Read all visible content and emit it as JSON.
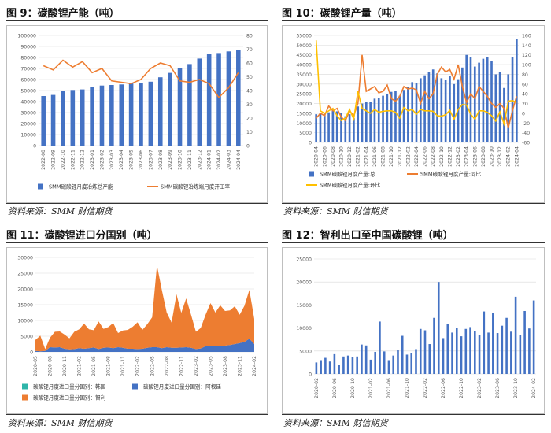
{
  "figures": [
    {
      "title": "图 9：碳酸锂产能（吨）",
      "source": "资料来源：SMM 财信期货"
    },
    {
      "title": "图 10：碳酸锂产量（吨）",
      "source": "资料来源：SMM 财信期货"
    },
    {
      "title": "图 11：碳酸锂进口分国别（吨）",
      "source": "资料来源：SMM 财信期货"
    },
    {
      "title": "图 12：智利出口至中国碳酸锂（吨）",
      "source": "资料来源：SMM 财信期货"
    }
  ],
  "colors": {
    "blue": "#4472C4",
    "orange": "#ED7D31",
    "yellow": "#FFC000",
    "teal": "#2EB5A9",
    "grid": "#d9d9d9",
    "axis": "#595959"
  },
  "chart_data": [
    {
      "type": "bar+line",
      "categories": [
        "2022-08",
        "2022-09",
        "2022-10",
        "2022-11",
        "2022-12",
        "2023-01",
        "2023-02",
        "2023-03",
        "2023-04",
        "2023-05",
        "2023-06",
        "2023-07",
        "2023-08",
        "2023-09",
        "2023-10",
        "2023-11",
        "2023-12",
        "2024-01",
        "2024-02",
        "2024-03",
        "2024-04"
      ],
      "yticks": [
        "0",
        "10000",
        "20000",
        "30000",
        "40000",
        "50000",
        "60000",
        "70000",
        "80000",
        "90000",
        "100000"
      ],
      "y2ticks": [
        "0",
        "10",
        "20",
        "30",
        "40",
        "50",
        "60",
        "70",
        "80"
      ],
      "ylim": [
        0,
        100000
      ],
      "y2lim": [
        0,
        80
      ],
      "series": [
        {
          "name": "SMM碳酸锂月度冶炼总产能",
          "kind": "bar",
          "axis": "left",
          "color": "#4472C4",
          "values": [
            45000,
            46000,
            50000,
            50500,
            51000,
            53500,
            54500,
            55000,
            55500,
            56500,
            57000,
            58000,
            62000,
            66000,
            70000,
            74000,
            79000,
            83000,
            84000,
            85500,
            87000
          ]
        },
        {
          "name": "SMM碳酸锂冶炼端月度开工率",
          "kind": "line",
          "axis": "right",
          "color": "#ED7D31",
          "values": [
            58,
            55,
            62,
            57,
            61,
            53,
            56,
            47,
            46,
            45,
            48,
            56,
            60,
            58,
            47,
            46,
            48,
            45,
            35,
            42,
            53
          ]
        }
      ]
    },
    {
      "type": "bar+line",
      "categories": [
        "2020-04",
        "2020-05",
        "2020-06",
        "2020-07",
        "2020-08",
        "2020-09",
        "2020-10",
        "2020-11",
        "2020-12",
        "2021-01",
        "2021-02",
        "2021-03",
        "2021-04",
        "2021-05",
        "2021-06",
        "2021-07",
        "2021-08",
        "2021-09",
        "2021-10",
        "2021-11",
        "2021-12",
        "2022-01",
        "2022-02",
        "2022-03",
        "2022-04",
        "2022-05",
        "2022-06",
        "2022-07",
        "2022-08",
        "2022-09",
        "2022-10",
        "2022-11",
        "2022-12",
        "2023-01",
        "2023-02",
        "2023-03",
        "2023-04",
        "2023-05",
        "2023-06",
        "2023-07",
        "2023-08",
        "2023-09",
        "2023-10",
        "2023-11",
        "2023-12",
        "2024-01",
        "2024-02",
        "2024-03",
        "2024-04"
      ],
      "xlabels": [
        "2020-04",
        "2020-06",
        "2020-08",
        "2020-10",
        "2020-12",
        "2021-02",
        "2021-04",
        "2021-06",
        "2021-08",
        "2021-10",
        "2021-12",
        "2022-02",
        "2022-04",
        "2022-06",
        "2022-08",
        "2022-10",
        "2022-12",
        "2023-02",
        "2023-04",
        "2023-06",
        "2023-08",
        "2023-10",
        "2023-12",
        "2024-02",
        "2024-04"
      ],
      "yticks": [
        "0",
        "5000",
        "10000",
        "15000",
        "20000",
        "25000",
        "30000",
        "35000",
        "40000",
        "45000",
        "50000",
        "55000"
      ],
      "y2ticks": [
        "-60",
        "-40",
        "-20",
        "0",
        "20",
        "40",
        "60",
        "80",
        "100",
        "120",
        "140",
        "160"
      ],
      "ylim": [
        0,
        55000
      ],
      "y2lim": [
        -60,
        160
      ],
      "series": [
        {
          "name": "SMM碳酸锂月度产量:总",
          "kind": "bar",
          "axis": "left",
          "color": "#4472C4",
          "values": [
            14500,
            15000,
            14800,
            15500,
            16500,
            16000,
            15000,
            13500,
            14500,
            12500,
            18500,
            20000,
            21000,
            21000,
            22500,
            23000,
            24000,
            25000,
            26000,
            26500,
            24000,
            27000,
            28500,
            31000,
            30500,
            33000,
            34500,
            36000,
            37500,
            35500,
            33000,
            32000,
            34000,
            30000,
            32500,
            38500,
            45000,
            44000,
            39000,
            41000,
            43000,
            44000,
            42000,
            35000,
            36000,
            28000,
            35000,
            44000,
            53000
          ]
        },
        {
          "name": "SMM碳酸锂月度产量:同比",
          "kind": "line",
          "axis": "right",
          "color": "#ED7D31",
          "values": [
            -10,
            0,
            -5,
            15,
            5,
            10,
            -8,
            -15,
            5,
            -5,
            20,
            120,
            45,
            50,
            55,
            42,
            45,
            58,
            30,
            25,
            35,
            55,
            50,
            52,
            48,
            20,
            45,
            30,
            40,
            80,
            95,
            85,
            90,
            70,
            100,
            55,
            22,
            40,
            30,
            55,
            45,
            35,
            20,
            12,
            20,
            10,
            -30,
            5,
            35
          ]
        },
        {
          "name": "SMM碳酸锂月度产量:环比",
          "kind": "line",
          "axis": "right",
          "color": "#FFC000",
          "values": [
            150,
            5,
            0,
            5,
            10,
            -5,
            -15,
            -10,
            8,
            -12,
            45,
            10,
            5,
            0,
            8,
            2,
            4,
            5,
            5,
            2,
            -10,
            12,
            5,
            8,
            -2,
            8,
            5,
            5,
            4,
            -5,
            -6,
            -3,
            6,
            -12,
            8,
            18,
            17,
            -2,
            -12,
            5,
            5,
            2,
            -5,
            -16,
            3,
            -22,
            25,
            26,
            22
          ]
        }
      ]
    },
    {
      "type": "area",
      "stacked": true,
      "categories": [
        "2020-05",
        "2020-06",
        "2020-07",
        "2020-08",
        "2020-09",
        "2020-10",
        "2020-11",
        "2020-12",
        "2021-01",
        "2021-02",
        "2021-03",
        "2021-04",
        "2021-05",
        "2021-06",
        "2021-07",
        "2021-08",
        "2021-09",
        "2021-10",
        "2021-11",
        "2021-12",
        "2022-01",
        "2022-02",
        "2022-03",
        "2022-04",
        "2022-05",
        "2022-06",
        "2022-07",
        "2022-08",
        "2022-09",
        "2022-10",
        "2022-11",
        "2022-12",
        "2023-01",
        "2023-02",
        "2023-03",
        "2023-04",
        "2023-05",
        "2023-06",
        "2023-07",
        "2023-08",
        "2023-09",
        "2023-10",
        "2023-11",
        "2023-12",
        "2024-01",
        "2024-02"
      ],
      "xlabels": [
        "2020-05",
        "2020-08",
        "2020-11",
        "2021-02",
        "2021-05",
        "2021-08",
        "2021-11",
        "2022-02",
        "2022-05",
        "2022-08",
        "2022-11",
        "2023-02",
        "2023-05",
        "2023-08",
        "2023-11",
        "2024-02"
      ],
      "yticks": [
        "0",
        "5000",
        "10000",
        "15000",
        "20000",
        "25000",
        "30000"
      ],
      "ylim": [
        0,
        30000
      ],
      "series": [
        {
          "name": "碳酸锂月度进口量分国别：韩国",
          "color": "#2EB5A9",
          "values": [
            0,
            0,
            0,
            0,
            0,
            0,
            0,
            0,
            0,
            0,
            0,
            0,
            0,
            0,
            0,
            0,
            0,
            0,
            0,
            0,
            0,
            0,
            0,
            0,
            0,
            0,
            0,
            0,
            0,
            0,
            0,
            0,
            0,
            0,
            0,
            0,
            0,
            0,
            0,
            0,
            0,
            0,
            0,
            0,
            0,
            0
          ]
        },
        {
          "name": "碳酸锂月度进口量分国别：阿根廷",
          "color": "#4472C4",
          "values": [
            300,
            200,
            300,
            1500,
            1400,
            1500,
            1000,
            800,
            900,
            1200,
            1000,
            1200,
            1400,
            900,
            1300,
            1400,
            1200,
            1500,
            1300,
            1000,
            1000,
            900,
            1000,
            1300,
            1500,
            1500,
            1200,
            1500,
            1300,
            1300,
            1400,
            1500,
            1300,
            900,
            1100,
            1800,
            2000,
            2000,
            1800,
            2000,
            2200,
            2500,
            2800,
            3200,
            4200,
            2500
          ]
        },
        {
          "name": "碳酸锂月度进口量分国别：智利",
          "color": "#ED7D31",
          "values": [
            3500,
            5000,
            600,
            3000,
            5000,
            5000,
            4500,
            3500,
            5500,
            6000,
            8000,
            6000,
            5500,
            8800,
            6000,
            6500,
            8000,
            4500,
            5500,
            6000,
            7000,
            8500,
            6000,
            7500,
            9500,
            26000,
            18500,
            11000,
            8000,
            17000,
            11000,
            15500,
            10500,
            5500,
            6500,
            10000,
            13500,
            10500,
            13000,
            11000,
            11000,
            12000,
            9000,
            11500,
            15500,
            8000
          ]
        }
      ]
    },
    {
      "type": "bar",
      "categories": [
        "2020-02",
        "2020-03",
        "2020-04",
        "2020-05",
        "2020-06",
        "2020-07",
        "2020-08",
        "2020-09",
        "2020-10",
        "2020-11",
        "2020-12",
        "2021-01",
        "2021-02",
        "2021-03",
        "2021-04",
        "2021-05",
        "2021-06",
        "2021-07",
        "2021-08",
        "2021-09",
        "2021-10",
        "2021-11",
        "2021-12",
        "2022-01",
        "2022-02",
        "2022-03",
        "2022-04",
        "2022-05",
        "2022-06",
        "2022-07",
        "2022-08",
        "2022-09",
        "2022-10",
        "2022-11",
        "2022-12",
        "2023-01",
        "2023-02",
        "2023-03",
        "2023-04",
        "2023-05",
        "2023-06",
        "2023-07",
        "2023-08",
        "2023-09",
        "2023-10",
        "2023-11",
        "2023-12",
        "2024-01",
        "2024-02"
      ],
      "xlabels": [
        "2020-02",
        "2020-06",
        "2020-10",
        "2021-02",
        "2021-06",
        "2021-10",
        "2022-02",
        "2022-06",
        "2022-10",
        "2023-02",
        "2023-06",
        "2023-10",
        "2024-02"
      ],
      "yticks": [
        "0",
        "5000",
        "10000",
        "15000",
        "20000",
        "25000"
      ],
      "ylim": [
        0,
        25000
      ],
      "series": [
        {
          "name": "",
          "color": "#4472C4",
          "values": [
            2500,
            3000,
            3500,
            2700,
            4300,
            2000,
            3800,
            4000,
            3600,
            3800,
            6400,
            6200,
            3100,
            4800,
            11400,
            4900,
            3000,
            4000,
            5200,
            8300,
            4200,
            4600,
            5400,
            9800,
            9500,
            6500,
            12200,
            20000,
            7800,
            10800,
            9000,
            10000,
            8200,
            9800,
            10200,
            9400,
            8500,
            13600,
            9000,
            13300,
            8900,
            10500,
            12200,
            9200,
            16800,
            8500,
            13700,
            9900,
            16000
          ]
        }
      ]
    }
  ]
}
